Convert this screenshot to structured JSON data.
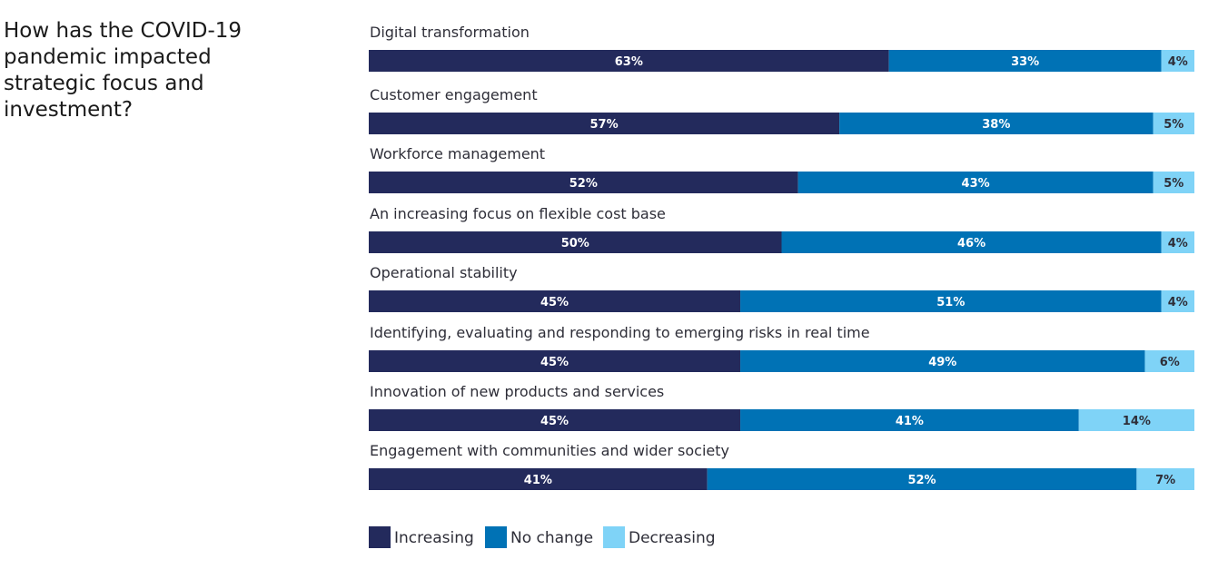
{
  "chart_data": {
    "type": "bar",
    "orientation": "horizontal",
    "stacked": true,
    "title": "How has the COVID-19 pandemic impacted strategic focus and investment?",
    "xlabel": "",
    "ylabel": "",
    "xlim": [
      0,
      100
    ],
    "grid": false,
    "legend_position": "bottom",
    "categories": [
      "Digital transformation",
      "Customer engagement",
      "Workforce management",
      "An increasing focus on flexible cost base",
      "Operational stability",
      "Identifying, evaluating and responding to emerging risks in real time",
      "Innovation of new products and services",
      "Engagement with communities and wider society"
    ],
    "series": [
      {
        "name": "Increasing",
        "color": "#232a5c",
        "text_color": "#ffffff",
        "values": [
          63,
          57,
          52,
          50,
          45,
          45,
          45,
          41
        ],
        "labels": [
          "63%",
          "57%",
          "52%",
          "50%",
          "45%",
          "45%",
          "45%",
          "41%"
        ]
      },
      {
        "name": "No change",
        "color": "#0072b5",
        "text_color": "#ffffff",
        "values": [
          33,
          38,
          43,
          46,
          51,
          49,
          41,
          52
        ],
        "labels": [
          "33%",
          "38%",
          "43%",
          "46%",
          "51%",
          "49%",
          "41%",
          "52%"
        ]
      },
      {
        "name": "Decreasing",
        "color": "#7fd3f7",
        "text_color": "#2e2e38",
        "values": [
          4,
          5,
          5,
          4,
          4,
          6,
          14,
          7
        ],
        "labels": [
          "4%",
          "5%",
          "5%",
          "4%",
          "4%",
          "6%",
          "14%",
          "7%"
        ]
      }
    ]
  }
}
